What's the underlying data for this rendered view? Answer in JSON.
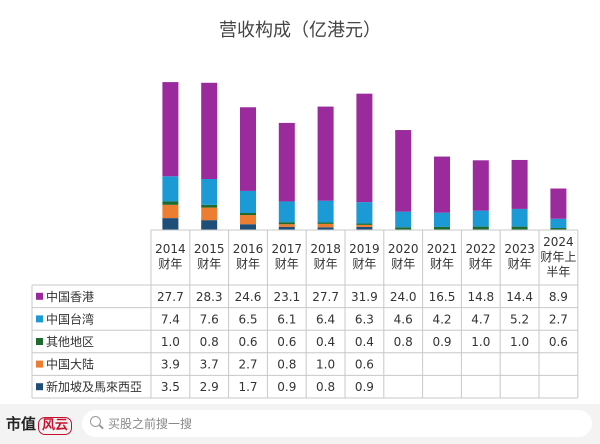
{
  "chart_data": {
    "type": "bar",
    "stacked": true,
    "title": "营收构成（亿港元）",
    "categories": [
      "2014\n财年",
      "2015\n财年",
      "2016\n财年",
      "2017\n财年",
      "2018\n财年",
      "2019\n财年",
      "2020\n财年",
      "2021\n财年",
      "2022\n财年",
      "2023\n财年",
      "2024\n财年上\n半年"
    ],
    "series": [
      {
        "name": "新加坡及馬來西亞",
        "color": "#1f4e79",
        "values": [
          3.5,
          2.9,
          1.7,
          0.9,
          0.8,
          0.9,
          null,
          null,
          null,
          null,
          null
        ]
      },
      {
        "name": "中国大陆",
        "color": "#ed7d31",
        "values": [
          3.9,
          3.7,
          2.7,
          0.8,
          1.0,
          0.6,
          null,
          null,
          null,
          null,
          null
        ]
      },
      {
        "name": "其他地区",
        "color": "#1e6b2f",
        "values": [
          1.0,
          0.8,
          0.6,
          0.6,
          0.4,
          0.4,
          0.8,
          0.9,
          1.0,
          1.0,
          0.6
        ]
      },
      {
        "name": "中国台湾",
        "color": "#1b9ad6",
        "values": [
          7.4,
          7.6,
          6.5,
          6.1,
          6.4,
          6.3,
          4.6,
          4.2,
          4.7,
          5.2,
          2.7
        ]
      },
      {
        "name": "中国香港",
        "color": "#9b2a9c",
        "values": [
          27.7,
          28.3,
          24.6,
          23.1,
          27.7,
          31.9,
          24.0,
          16.5,
          14.8,
          14.4,
          8.9
        ]
      }
    ],
    "table_order": [
      "中国香港",
      "中国台湾",
      "其他地区",
      "中国大陆",
      "新加坡及馬來西亞"
    ],
    "legend": "left (data table)",
    "grid": false
  },
  "footer": {
    "logo_text": "市值",
    "logo_mark": "风云",
    "search_placeholder": "买股之前搜一搜"
  }
}
